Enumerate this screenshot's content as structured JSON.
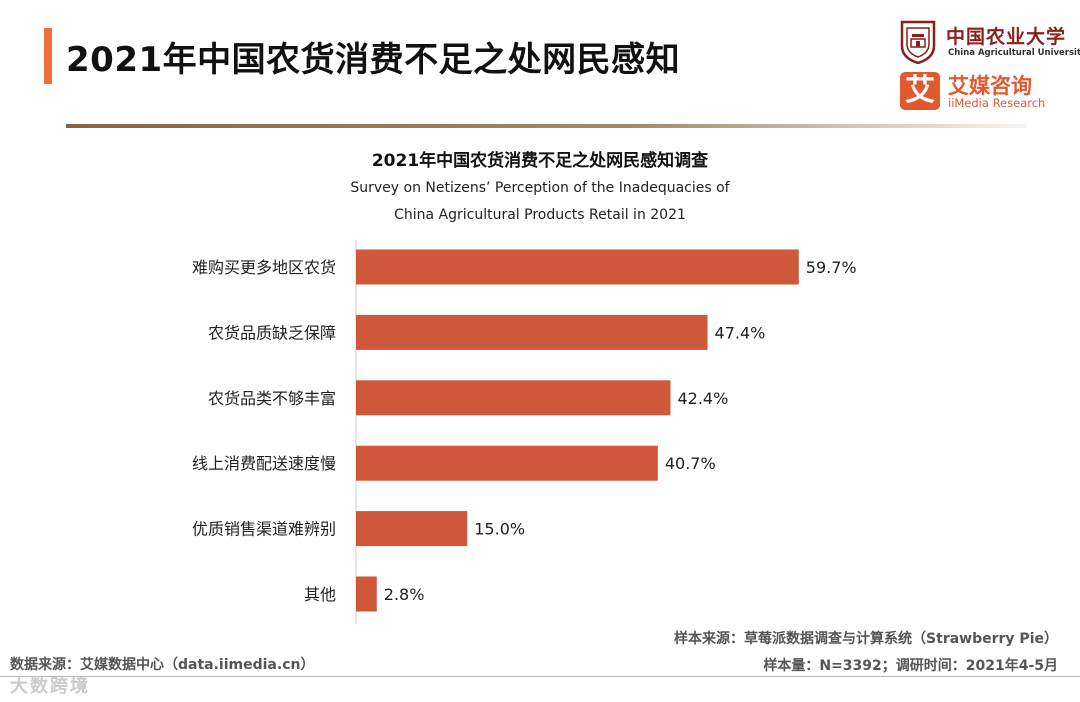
{
  "header": {
    "title": "2021年中国农货消费不足之处网民感知"
  },
  "logos": {
    "cau_name_cn": "中国农业大学",
    "cau_name_en": "China Agricultural University",
    "imedia_mark": "艾",
    "imedia_name_cn": "艾媒咨询",
    "imedia_name_en": "iiMedia Research"
  },
  "chart_data": {
    "type": "bar",
    "orientation": "horizontal",
    "title": "2021年中国农货消费不足之处网民感知调查",
    "subtitle_line1": "Survey on Netizens’ Perception of the Inadequacies of",
    "subtitle_line2": "China Agricultural Products Retail in 2021",
    "categories": [
      "难购买更多地区农货",
      "农货品质缺乏保障",
      "农货品类不够丰富",
      "线上消费配送速度慢",
      "优质销售渠道难辨别",
      "其他"
    ],
    "values": [
      59.7,
      47.4,
      42.4,
      40.7,
      15.0,
      2.8
    ],
    "value_labels": [
      "59.7%",
      "47.4%",
      "42.4%",
      "40.7%",
      "15.0%",
      "2.8%"
    ],
    "unit": "%",
    "xlim": [
      0,
      60
    ],
    "grid": false,
    "bar_color": "#d0583a"
  },
  "footer": {
    "source_left": "数据来源：艾媒数据中心（data.iimedia.cn）",
    "sample_source": "样本来源：草莓派数据调查与计算系统（Strawberry Pie）",
    "sample_info": "样本量：N=3392；调研时间：2021年4-5月",
    "watermark": "大数跨境"
  }
}
